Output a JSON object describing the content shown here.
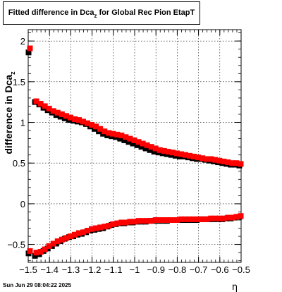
{
  "title": {
    "prefix": "Fitted difference in Dca",
    "subscript": "z",
    "suffix": " for Global Rec Pion EtapT"
  },
  "timestamp": "Sun Jun 29 08:04:22 2025",
  "chart_data": {
    "type": "scatter",
    "xlabel": "η",
    "ylabel": "difference in Dca",
    "ylabel_subscript": "z",
    "xlim": [
      -1.5,
      -0.5
    ],
    "ylim": [
      -0.72,
      2.14
    ],
    "grid": true,
    "x_ticks": [
      -1.5,
      -1.4,
      -1.3,
      -1.2,
      -1.1,
      -1,
      -0.9,
      -0.8,
      -0.7,
      -0.6,
      -0.5
    ],
    "x_tick_labels": [
      "−1.5",
      "−1.4",
      "−1.3",
      "−1.2",
      "−1.1",
      "−1",
      "−0.9",
      "−0.8",
      "−0.7",
      "−0.6",
      "−0.5"
    ],
    "y_ticks": [
      -0.5,
      0,
      0.5,
      1,
      1.5,
      2
    ],
    "y_tick_labels": [
      "−0.5",
      "0",
      "0.5",
      "1",
      "1.5",
      "2"
    ],
    "marker_colors": {
      "black": "#000000",
      "red": "#ff0000"
    },
    "series": [
      {
        "color": "#000000",
        "x": [
          -1.495,
          -1.465,
          -1.445,
          -1.425,
          -1.405,
          -1.385,
          -1.365,
          -1.345,
          -1.325,
          -1.305,
          -1.285,
          -1.265,
          -1.245,
          -1.225,
          -1.205,
          -1.185,
          -1.165,
          -1.145,
          -1.125,
          -1.105,
          -1.085,
          -1.065,
          -1.045,
          -1.025,
          -1.005,
          -0.985,
          -0.965,
          -0.945,
          -0.925,
          -0.905,
          -0.885,
          -0.865,
          -0.845,
          -0.825,
          -0.805,
          -0.785,
          -0.765,
          -0.745,
          -0.725,
          -0.705,
          -0.685,
          -0.665,
          -0.645,
          -0.625,
          -0.605,
          -0.585,
          -0.565,
          -0.545,
          -0.525,
          -0.505
        ],
        "upper": [
          1.86,
          1.25,
          1.22,
          1.18,
          1.15,
          1.12,
          1.09,
          1.07,
          1.05,
          1.03,
          1.02,
          1.01,
          1.0,
          0.98,
          0.95,
          0.92,
          0.89,
          0.86,
          0.84,
          0.83,
          0.82,
          0.8,
          0.78,
          0.76,
          0.74,
          0.72,
          0.7,
          0.68,
          0.66,
          0.64,
          0.63,
          0.62,
          0.61,
          0.6,
          0.59,
          0.58,
          0.58,
          0.57,
          0.56,
          0.55,
          0.55,
          0.54,
          0.53,
          0.52,
          0.51,
          0.5,
          0.49,
          0.48,
          0.48,
          0.47
        ],
        "lower": [
          -0.61,
          -0.64,
          -0.62,
          -0.58,
          -0.55,
          -0.52,
          -0.49,
          -0.46,
          -0.43,
          -0.41,
          -0.4,
          -0.38,
          -0.37,
          -0.35,
          -0.33,
          -0.32,
          -0.31,
          -0.3,
          -0.28,
          -0.26,
          -0.25,
          -0.24,
          -0.24,
          -0.23,
          -0.23,
          -0.22,
          -0.22,
          -0.22,
          -0.21,
          -0.21,
          -0.21,
          -0.21,
          -0.21,
          -0.2,
          -0.2,
          -0.2,
          -0.2,
          -0.2,
          -0.2,
          -0.2,
          -0.19,
          -0.19,
          -0.19,
          -0.19,
          -0.19,
          -0.19,
          -0.18,
          -0.18,
          -0.17,
          -0.16
        ]
      },
      {
        "color": "#ff0000",
        "x": [
          -1.495,
          -1.465,
          -1.445,
          -1.425,
          -1.405,
          -1.385,
          -1.365,
          -1.345,
          -1.325,
          -1.305,
          -1.285,
          -1.265,
          -1.245,
          -1.225,
          -1.205,
          -1.185,
          -1.165,
          -1.145,
          -1.125,
          -1.105,
          -1.085,
          -1.065,
          -1.045,
          -1.025,
          -1.005,
          -0.985,
          -0.965,
          -0.945,
          -0.925,
          -0.905,
          -0.885,
          -0.865,
          -0.845,
          -0.825,
          -0.805,
          -0.785,
          -0.765,
          -0.745,
          -0.725,
          -0.705,
          -0.685,
          -0.665,
          -0.645,
          -0.625,
          -0.605,
          -0.585,
          -0.565,
          -0.545,
          -0.525,
          -0.505
        ],
        "upper": [
          1.91,
          1.26,
          1.23,
          1.2,
          1.17,
          1.14,
          1.12,
          1.1,
          1.08,
          1.06,
          1.04,
          1.03,
          1.01,
          0.99,
          0.97,
          0.95,
          0.92,
          0.89,
          0.87,
          0.86,
          0.85,
          0.84,
          0.82,
          0.8,
          0.78,
          0.76,
          0.74,
          0.72,
          0.7,
          0.68,
          0.66,
          0.65,
          0.64,
          0.63,
          0.62,
          0.61,
          0.6,
          0.59,
          0.58,
          0.57,
          0.56,
          0.55,
          0.55,
          0.54,
          0.53,
          0.52,
          0.51,
          0.5,
          0.5,
          0.49
        ],
        "lower": [
          -0.58,
          -0.6,
          -0.59,
          -0.56,
          -0.52,
          -0.49,
          -0.46,
          -0.44,
          -0.42,
          -0.4,
          -0.38,
          -0.36,
          -0.35,
          -0.33,
          -0.31,
          -0.3,
          -0.29,
          -0.28,
          -0.27,
          -0.25,
          -0.24,
          -0.23,
          -0.23,
          -0.22,
          -0.22,
          -0.21,
          -0.21,
          -0.21,
          -0.21,
          -0.2,
          -0.2,
          -0.2,
          -0.2,
          -0.2,
          -0.2,
          -0.19,
          -0.19,
          -0.19,
          -0.19,
          -0.19,
          -0.19,
          -0.19,
          -0.18,
          -0.18,
          -0.18,
          -0.18,
          -0.17,
          -0.17,
          -0.16,
          -0.15
        ]
      }
    ]
  }
}
